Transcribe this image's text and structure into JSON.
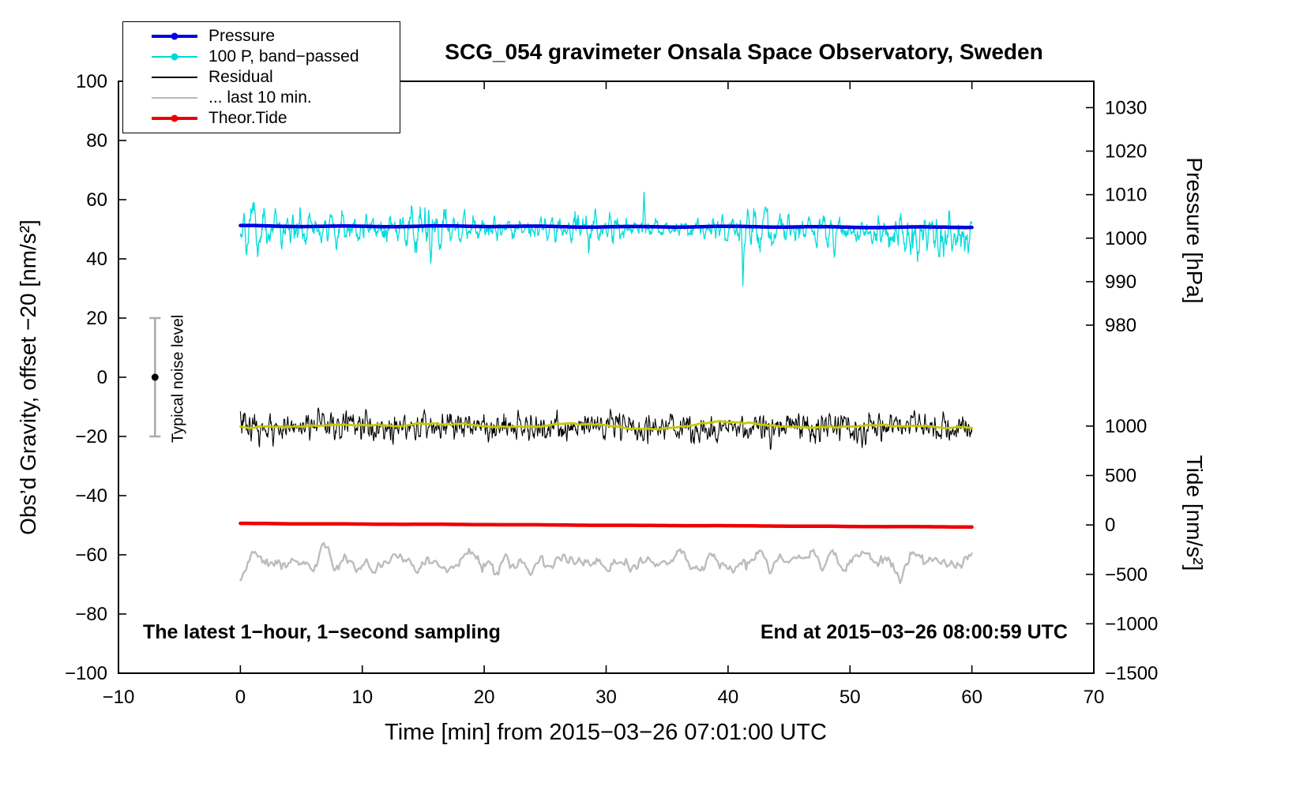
{
  "chart_data": {
    "type": "line",
    "title": "SCG_054 gravimeter Onsala Space Observatory, Sweden",
    "xlabel": "Time [min] from 2015−03−26 07:01:00 UTC",
    "ylabel_left": "Obs’d Gravity, offset −20 [nm/s²]",
    "ylabel_pressure": "Pressure [hPa]",
    "ylabel_tide": "Tide [nm/s²]",
    "xlim": [
      -10,
      70
    ],
    "ylim_left": [
      -100,
      100
    ],
    "x_range": [
      0,
      60
    ],
    "xticks": [
      -10,
      0,
      10,
      20,
      30,
      40,
      50,
      60,
      70
    ],
    "yticks_left": [
      -100,
      -80,
      -60,
      -40,
      -20,
      0,
      20,
      40,
      60,
      80,
      100
    ],
    "pressure_ticks": [
      {
        "label": "1030",
        "at": 91.1
      },
      {
        "label": "1020",
        "at": 76.4
      },
      {
        "label": "1010",
        "at": 61.7
      },
      {
        "label": "1000",
        "at": 47.0
      },
      {
        "label": "990",
        "at": 32.3
      },
      {
        "label": "980",
        "at": 17.6
      }
    ],
    "tide_ticks": [
      {
        "label": "1000",
        "at": -16.5
      },
      {
        "label": "500",
        "at": -33.2
      },
      {
        "label": "0",
        "at": -49.9
      },
      {
        "label": "−500",
        "at": -66.6
      },
      {
        "label": "−1000",
        "at": -83.3
      },
      {
        "label": "−1500",
        "at": -100
      }
    ],
    "legend": [
      {
        "label": "Pressure",
        "color": "#0000e0",
        "dot": true,
        "lw": 3.5
      },
      {
        "label": "100 P, band−passed",
        "color": "#00d8d8",
        "dot": true,
        "lw": 1.4
      },
      {
        "label": "Residual",
        "color": "#000000",
        "dot": false,
        "lw": 2.2
      },
      {
        "label": "... last 10 min.",
        "color": "#b8b8b8",
        "dot": false,
        "lw": 2.6
      },
      {
        "label": "Theor.Tide",
        "color": "#ee0000",
        "dot": true,
        "lw": 3.5
      }
    ],
    "series": [
      {
        "name": "100 P, band-passed",
        "style": "bandpass",
        "color": "#00dcdc",
        "width": 1.3,
        "points": 1400,
        "mean": 50.2,
        "amp": 2.5,
        "late_drift": -3.2,
        "spikes": [
          {
            "x": 15.6,
            "y": 38.5
          },
          {
            "x": 33.1,
            "y": 62.5
          },
          {
            "x": 41.2,
            "y": 31.0
          },
          {
            "x": 48.7,
            "y": 40.5
          },
          {
            "x": 55.0,
            "y": 41.5
          }
        ]
      },
      {
        "name": "Pressure",
        "style": "smooth",
        "color": "#0000e0",
        "width": 4.5,
        "points": 300,
        "start": 51.1,
        "end": 50.7,
        "noise": 0.12
      },
      {
        "name": "Residual",
        "style": "noise",
        "color": "#000000",
        "width": 1.1,
        "points": 1500,
        "mean": -16.9,
        "amp": 2.3,
        "window": 1
      },
      {
        "name": "Residual smoothed",
        "style": "slow",
        "color": "#c8c800",
        "width": 2.8,
        "points": 300,
        "mean": -16.4,
        "amp": 0.55,
        "window": 12
      },
      {
        "name": "Theor.Tide",
        "style": "smooth",
        "color": "#ee0000",
        "width": 4.5,
        "points": 120,
        "start": -49.4,
        "end": -50.6,
        "noise": 0.03
      },
      {
        "name": "... last 10 min.",
        "style": "slow",
        "color": "#bcbcbc",
        "width": 2.4,
        "points": 500,
        "mean": -62.2,
        "amp": 2.0,
        "window": 3
      }
    ],
    "annotations": {
      "bottom_left": "The latest 1−hour, 1−second sampling",
      "bottom_right": "End at 2015−03−26 08:00:59 UTC"
    },
    "noise_marker": {
      "label": "Typical noise level",
      "x": -7,
      "span": [
        -20,
        20
      ],
      "dot": 0
    }
  }
}
